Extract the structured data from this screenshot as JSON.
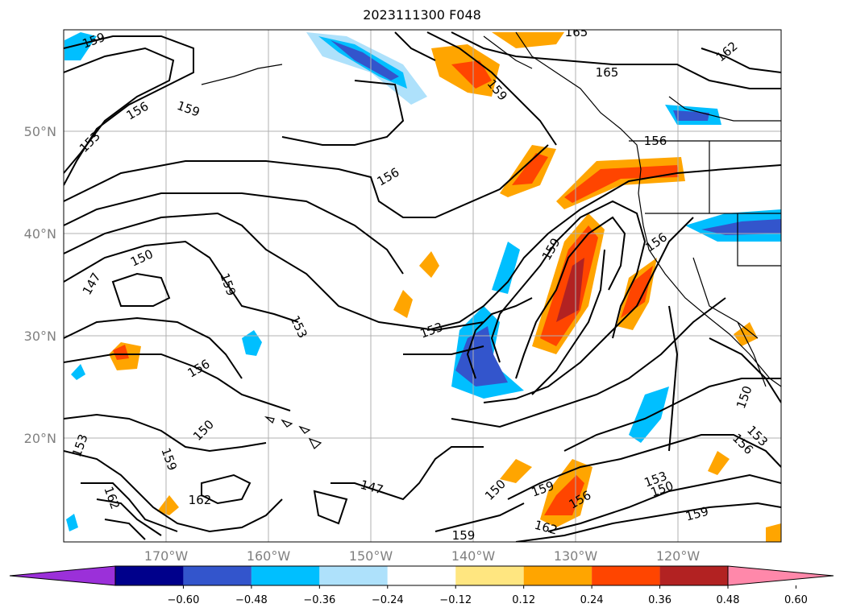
{
  "title": "2023111300 F048",
  "lat_labels": [
    "50°N",
    "40°N",
    "30°N",
    "20°N"
  ],
  "lon_labels": [
    "170°W",
    "160°W",
    "150°W",
    "140°W",
    "130°W",
    "120°W"
  ],
  "colorbar": {
    "colors": [
      "#9b30d9",
      "#00008b",
      "#3355cc",
      "#00bfff",
      "#aee1fb",
      "#ffffff",
      "#ffe680",
      "#ffa500",
      "#ff4500",
      "#b22222",
      "#ff88aa"
    ],
    "tick_labels": [
      "−0.60",
      "−0.48",
      "−0.36",
      "−0.24",
      "−0.12",
      "0.12",
      "0.24",
      "0.36",
      "0.48",
      "0.60"
    ]
  },
  "contour_labels": [
    "159",
    "156",
    "153",
    "159",
    "165",
    "165",
    "162",
    "156",
    "159",
    "156",
    "156",
    "150",
    "147",
    "159",
    "153",
    "159",
    "153",
    "156",
    "150",
    "153",
    "159",
    "162",
    "162",
    "147",
    "150",
    "159",
    "156",
    "153",
    "150",
    "159",
    "162",
    "159",
    "150",
    "153",
    "156"
  ]
}
